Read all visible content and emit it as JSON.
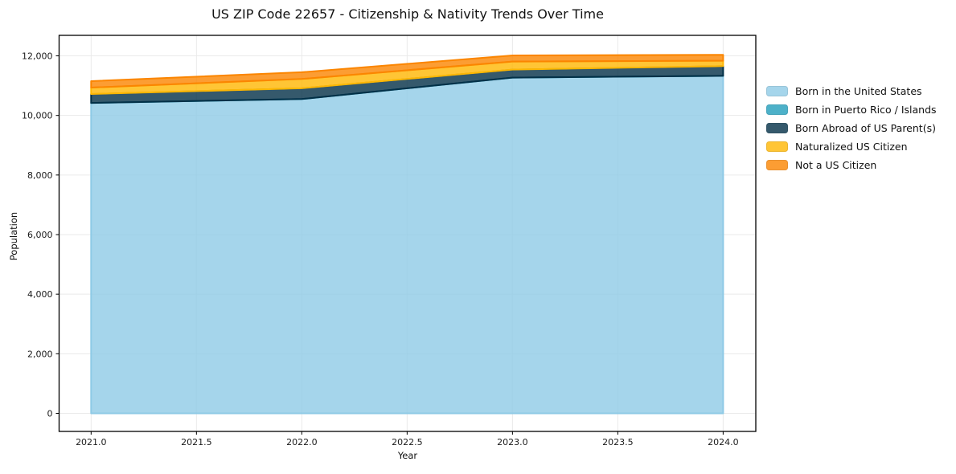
{
  "chart_data": {
    "type": "area",
    "stacked": true,
    "title": "US ZIP Code 22657 - Citizenship & Nativity Trends Over Time",
    "xlabel": "Year",
    "ylabel": "Population",
    "x": [
      2021,
      2022,
      2023,
      2024
    ],
    "series": [
      {
        "name": "Born in the United States",
        "color": "#8ecae6",
        "values": [
          10420,
          10550,
          11270,
          11330
        ]
      },
      {
        "name": "Born in Puerto Rico / Islands",
        "color": "#219ebc",
        "values": [
          0,
          0,
          0,
          0
        ]
      },
      {
        "name": "Born Abroad of US Parent(s)",
        "color": "#023047",
        "values": [
          300,
          360,
          270,
          325
        ]
      },
      {
        "name": "Naturalized US Citizen",
        "color": "#ffb703",
        "values": [
          215,
          315,
          270,
          180
        ]
      },
      {
        "name": "Not a US Citizen",
        "color": "#fb8500",
        "values": [
          215,
          225,
          205,
          200
        ]
      }
    ],
    "x_ticks": [
      2021.0,
      2021.5,
      2022.0,
      2022.5,
      2023.0,
      2023.5,
      2024.0
    ],
    "x_tick_labels": [
      "2021.0",
      "2021.5",
      "2022.0",
      "2022.5",
      "2023.0",
      "2023.5",
      "2024.0"
    ],
    "y_ticks": [
      0,
      2000,
      4000,
      6000,
      8000,
      10000,
      12000
    ],
    "y_tick_labels": [
      "0",
      "2,000",
      "4,000",
      "6,000",
      "8,000",
      "10,000",
      "12,000"
    ],
    "xlim": [
      2020.848,
      2024.155
    ],
    "ylim": [
      -607,
      12688
    ],
    "grid": true,
    "legend_position": "right",
    "fill_alpha": 0.8,
    "colors": {
      "grid": "#eaeaea",
      "spine": "#000000",
      "text": "#1a1a1a"
    }
  }
}
